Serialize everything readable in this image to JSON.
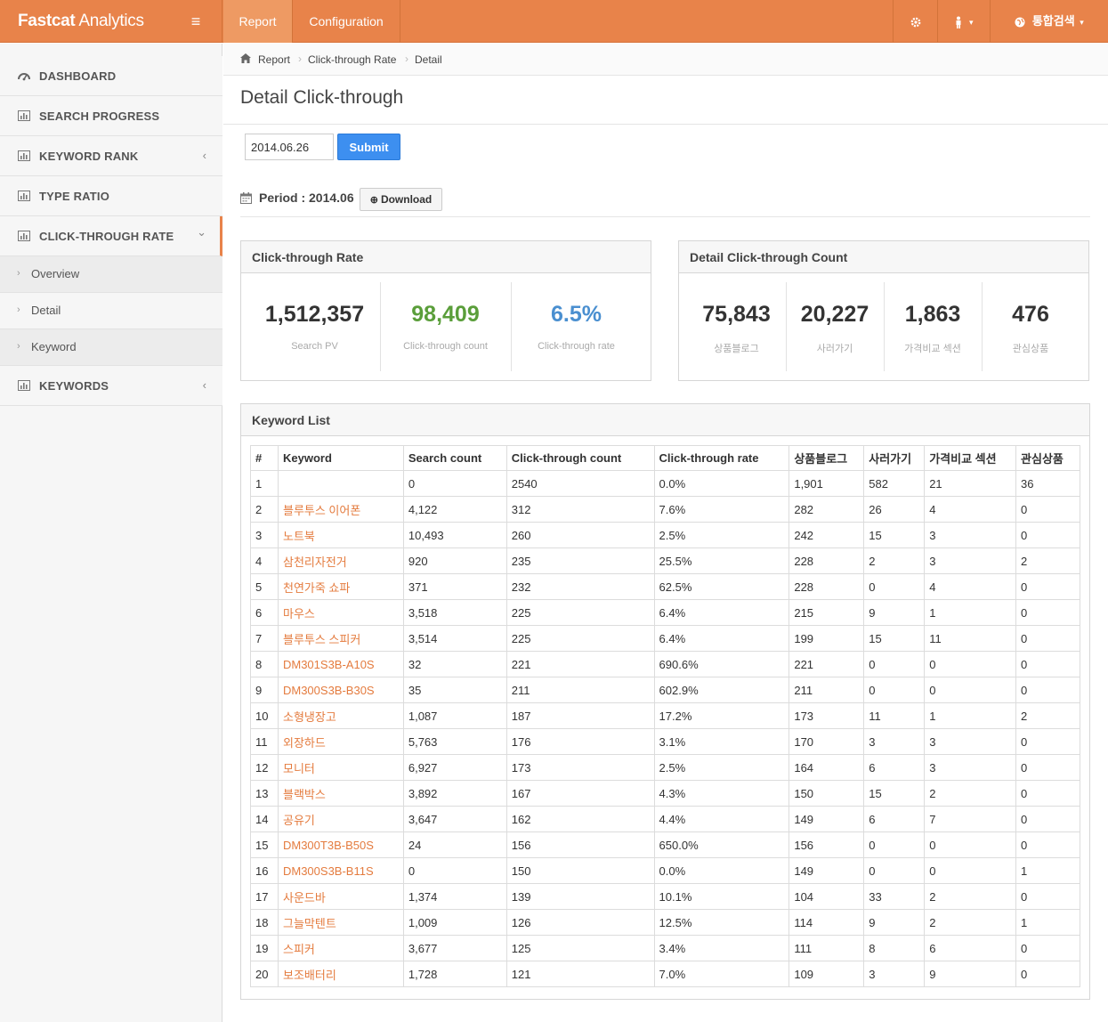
{
  "app": {
    "brand_bold": "Fastcat",
    "brand_light": " Analytics",
    "menu_icon": "hamburger-icon"
  },
  "top_tabs": [
    {
      "label": "Report",
      "active": true
    },
    {
      "label": "Configuration",
      "active": false
    }
  ],
  "top_right": {
    "search_label": "통합검색"
  },
  "sidebar": {
    "items": [
      {
        "label": "DASHBOARD",
        "icon": "dashboard-icon"
      },
      {
        "label": "SEARCH PROGRESS",
        "icon": "bar-chart-icon"
      },
      {
        "label": "KEYWORD RANK",
        "icon": "bar-chart-icon",
        "caret": "‹"
      },
      {
        "label": "TYPE RATIO",
        "icon": "bar-chart-icon"
      },
      {
        "label": "CLICK-THROUGH RATE",
        "icon": "bar-chart-icon",
        "caret": "⌄"
      },
      {
        "label": "KEYWORDS",
        "icon": "bar-chart-icon",
        "caret": "‹"
      }
    ],
    "sub_items": [
      {
        "label": "Overview"
      },
      {
        "label": "Detail"
      },
      {
        "label": "Keyword"
      }
    ]
  },
  "breadcrumb": {
    "items": [
      "Report",
      "Click-through Rate",
      "Detail"
    ]
  },
  "page_title": "Detail Click-through",
  "form": {
    "date_value": "2014.06.26",
    "submit_label": "Submit"
  },
  "period": {
    "label": "Period : 2014.06",
    "download_label": "Download"
  },
  "ctr_panel": {
    "title": "Click-through Rate",
    "stats": [
      {
        "value": "1,512,357",
        "label": "Search PV",
        "color": "#333333"
      },
      {
        "value": "98,409",
        "label": "Click-through count",
        "color": "#5a9e3a"
      },
      {
        "value": "6.5%",
        "label": "Click-through rate",
        "color": "#4a8fd0"
      }
    ]
  },
  "detail_panel": {
    "title": "Detail Click-through Count",
    "stats": [
      {
        "value": "75,843",
        "label": "상품블로그"
      },
      {
        "value": "20,227",
        "label": "사러가기"
      },
      {
        "value": "1,863",
        "label": "가격비교 섹션"
      },
      {
        "value": "476",
        "label": "관심상품"
      }
    ]
  },
  "keyword_list": {
    "title": "Keyword List",
    "columns": [
      "#",
      "Keyword",
      "Search count",
      "Click-through count",
      "Click-through rate",
      "상품블로그",
      "사러가기",
      "가격비교 섹션",
      "관심상품"
    ],
    "rows": [
      [
        "1",
        "",
        "0",
        "2540",
        "0.0%",
        "1,901",
        "582",
        "21",
        "36"
      ],
      [
        "2",
        "블루투스 이어폰",
        "4,122",
        "312",
        "7.6%",
        "282",
        "26",
        "4",
        "0"
      ],
      [
        "3",
        "노트북",
        "10,493",
        "260",
        "2.5%",
        "242",
        "15",
        "3",
        "0"
      ],
      [
        "4",
        "삼천리자전거",
        "920",
        "235",
        "25.5%",
        "228",
        "2",
        "3",
        "2"
      ],
      [
        "5",
        "천연가죽 쇼파",
        "371",
        "232",
        "62.5%",
        "228",
        "0",
        "4",
        "0"
      ],
      [
        "6",
        "마우스",
        "3,518",
        "225",
        "6.4%",
        "215",
        "9",
        "1",
        "0"
      ],
      [
        "7",
        "블루투스 스피커",
        "3,514",
        "225",
        "6.4%",
        "199",
        "15",
        "11",
        "0"
      ],
      [
        "8",
        "DM301S3B-A10S",
        "32",
        "221",
        "690.6%",
        "221",
        "0",
        "0",
        "0"
      ],
      [
        "9",
        "DM300S3B-B30S",
        "35",
        "211",
        "602.9%",
        "211",
        "0",
        "0",
        "0"
      ],
      [
        "10",
        "소형냉장고",
        "1,087",
        "187",
        "17.2%",
        "173",
        "11",
        "1",
        "2"
      ],
      [
        "11",
        "외장하드",
        "5,763",
        "176",
        "3.1%",
        "170",
        "3",
        "3",
        "0"
      ],
      [
        "12",
        "모니터",
        "6,927",
        "173",
        "2.5%",
        "164",
        "6",
        "3",
        "0"
      ],
      [
        "13",
        "블랙박스",
        "3,892",
        "167",
        "4.3%",
        "150",
        "15",
        "2",
        "0"
      ],
      [
        "14",
        "공유기",
        "3,647",
        "162",
        "4.4%",
        "149",
        "6",
        "7",
        "0"
      ],
      [
        "15",
        "DM300T3B-B50S",
        "24",
        "156",
        "650.0%",
        "156",
        "0",
        "0",
        "0"
      ],
      [
        "16",
        "DM300S3B-B11S",
        "0",
        "150",
        "0.0%",
        "149",
        "0",
        "0",
        "1"
      ],
      [
        "17",
        "사운드바",
        "1,374",
        "139",
        "10.1%",
        "104",
        "33",
        "2",
        "0"
      ],
      [
        "18",
        "그늘막텐트",
        "1,009",
        "126",
        "12.5%",
        "114",
        "9",
        "2",
        "1"
      ],
      [
        "19",
        "스피커",
        "3,677",
        "125",
        "3.4%",
        "111",
        "8",
        "6",
        "0"
      ],
      [
        "20",
        "보조배터리",
        "1,728",
        "121",
        "7.0%",
        "109",
        "3",
        "9",
        "0"
      ]
    ]
  },
  "colors": {
    "accent": "#e8834a",
    "link": "#e47b3e",
    "primary": "#3d8ff0"
  }
}
